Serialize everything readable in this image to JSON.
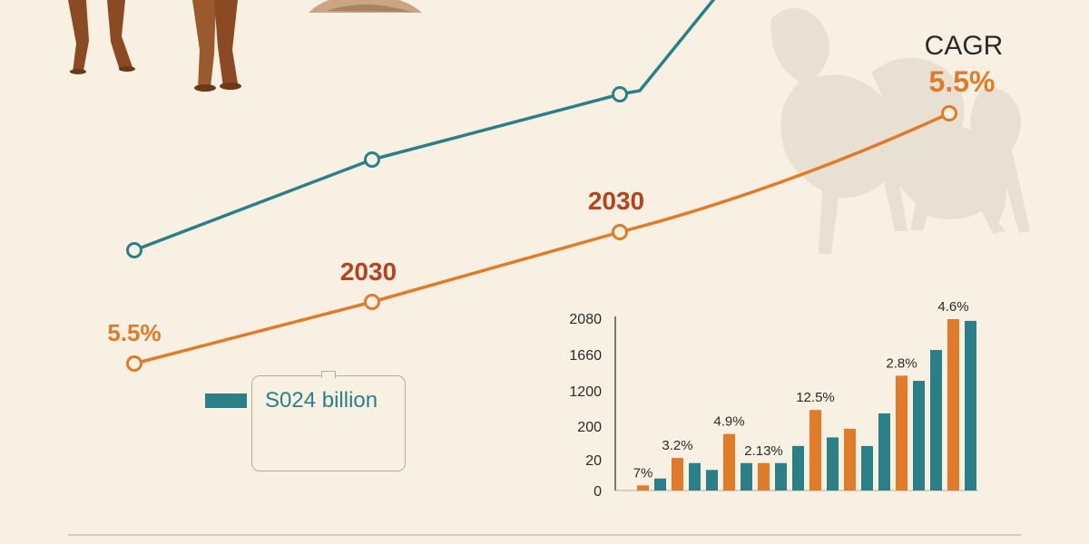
{
  "colors": {
    "background": "#f8f1e3",
    "teal": "#2a8086",
    "orange": "#e07b2a",
    "red_label": "#b8421c",
    "axis": "#2a2a2a"
  },
  "decor": {
    "camel_illustration": "camel-illustration-icon",
    "rock_illustration": "rock-illustration-icon",
    "deer_watermark": "deer-watermark-icon"
  },
  "cagr": {
    "label": "CAGR",
    "value": "5.5%"
  },
  "legend": {
    "text": "S024 billion"
  },
  "chart_data": [
    {
      "type": "line",
      "series": [
        {
          "name": "",
          "color": "#2a8086",
          "values": [
            1,
            2,
            3,
            5
          ]
        },
        {
          "name": "",
          "color": "#e07b2a",
          "values": [
            0,
            1,
            2,
            3,
            4
          ],
          "point_labels": [
            "5.5%",
            "2030",
            "2030",
            "",
            "5.5%"
          ]
        }
      ],
      "annotations": [
        "CAGR"
      ]
    },
    {
      "type": "bar",
      "y_tick_labels": [
        "0",
        "20",
        "200",
        "1200",
        "1660",
        "2080"
      ],
      "y_tick_levels": [
        0,
        1,
        2,
        3,
        4,
        5
      ],
      "bars": [
        {
          "color": "orange",
          "value": 0.15,
          "label": "7%"
        },
        {
          "color": "teal",
          "value": 0.35,
          "label": ""
        },
        {
          "color": "orange",
          "value": 0.95,
          "label": "3.2%"
        },
        {
          "color": "teal",
          "value": 0.8,
          "label": ""
        },
        {
          "color": "teal",
          "value": 0.6,
          "label": ""
        },
        {
          "color": "orange",
          "value": 1.65,
          "label": "4.9%"
        },
        {
          "color": "teal",
          "value": 0.8,
          "label": ""
        },
        {
          "color": "orange",
          "value": 0.8,
          "label": "2.13%"
        },
        {
          "color": "teal",
          "value": 0.8,
          "label": ""
        },
        {
          "color": "teal",
          "value": 1.3,
          "label": ""
        },
        {
          "color": "orange",
          "value": 2.35,
          "label": "12.5%"
        },
        {
          "color": "teal",
          "value": 1.55,
          "label": ""
        },
        {
          "color": "orange",
          "value": 1.8,
          "label": ""
        },
        {
          "color": "teal",
          "value": 1.3,
          "label": ""
        },
        {
          "color": "teal",
          "value": 2.25,
          "label": ""
        },
        {
          "color": "orange",
          "value": 3.35,
          "label": "2.8%"
        },
        {
          "color": "teal",
          "value": 3.2,
          "label": ""
        },
        {
          "color": "teal",
          "value": 4.1,
          "label": ""
        },
        {
          "color": "orange",
          "value": 5.0,
          "label": "4.6%"
        },
        {
          "color": "teal",
          "value": 4.95,
          "label": ""
        }
      ],
      "ylim": [
        0,
        5
      ]
    }
  ]
}
